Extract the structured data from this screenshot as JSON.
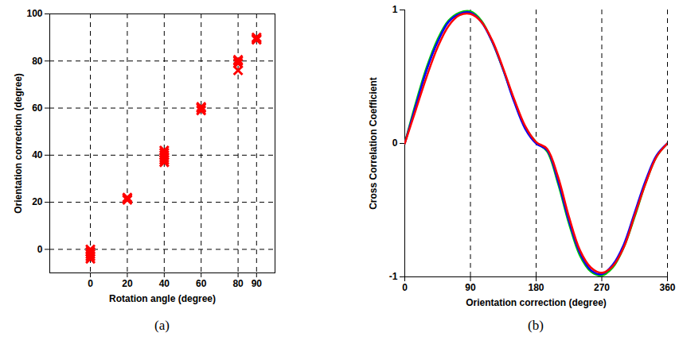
{
  "chart_data": [
    {
      "type": "scatter",
      "title": "(a)",
      "x_label": "Rotation angle (degree)",
      "y_label": "Orientation correction (degree)",
      "x": [
        0,
        0,
        0,
        0,
        0,
        20,
        20,
        20,
        40,
        40,
        40,
        40,
        40,
        40,
        60,
        60,
        60,
        80,
        80,
        80,
        80,
        90,
        90,
        90
      ],
      "values": [
        0,
        -1,
        -2,
        -3,
        -4,
        21,
        22,
        21.5,
        37,
        38,
        39,
        40,
        41,
        42,
        59,
        60,
        60.5,
        76,
        79,
        80,
        80.5,
        89,
        90,
        89.5
      ],
      "color": "#ff0000",
      "marker": "x",
      "xlim": [
        -22,
        100
      ],
      "xticks": [
        0,
        20,
        40,
        60,
        80,
        90
      ],
      "ylim": [
        -10,
        100
      ],
      "yticks": [
        0,
        20,
        40,
        60,
        80,
        100
      ],
      "grid": true
    },
    {
      "type": "line",
      "title": "(b)",
      "x_label": "Orientation correction (degree)",
      "y_label": "Cross Correlation Coefficient",
      "x": [
        0,
        15,
        30,
        45,
        60,
        75,
        90,
        105,
        120,
        135,
        150,
        165,
        180,
        195,
        210,
        225,
        240,
        255,
        270,
        285,
        300,
        315,
        330,
        345,
        360
      ],
      "series": [
        {
          "color": "#00cc00",
          "values": [
            0,
            0.3,
            0.57,
            0.78,
            0.92,
            0.98,
            0.99,
            0.92,
            0.76,
            0.55,
            0.32,
            0.12,
            0.01,
            -0.06,
            -0.3,
            -0.6,
            -0.84,
            -0.96,
            -0.99,
            -0.93,
            -0.78,
            -0.55,
            -0.3,
            -0.1,
            0
          ]
        },
        {
          "color": "#0000ff",
          "values": [
            0,
            0.28,
            0.55,
            0.76,
            0.91,
            0.97,
            0.98,
            0.91,
            0.76,
            0.55,
            0.31,
            0.11,
            0,
            -0.05,
            -0.28,
            -0.58,
            -0.82,
            -0.95,
            -0.98,
            -0.91,
            -0.76,
            -0.52,
            -0.28,
            -0.09,
            0
          ]
        },
        {
          "color": "#ff0000",
          "values": [
            0,
            0.25,
            0.5,
            0.72,
            0.88,
            0.96,
            0.97,
            0.91,
            0.77,
            0.56,
            0.33,
            0.13,
            0.01,
            -0.04,
            -0.25,
            -0.55,
            -0.8,
            -0.93,
            -0.97,
            -0.92,
            -0.78,
            -0.54,
            -0.3,
            -0.1,
            0
          ]
        }
      ],
      "xlim": [
        0,
        360
      ],
      "xticks": [
        0,
        90,
        180,
        270,
        360
      ],
      "ylim": [
        -1,
        1
      ],
      "yticks": [
        -1,
        0,
        1
      ],
      "grid": "x"
    }
  ]
}
